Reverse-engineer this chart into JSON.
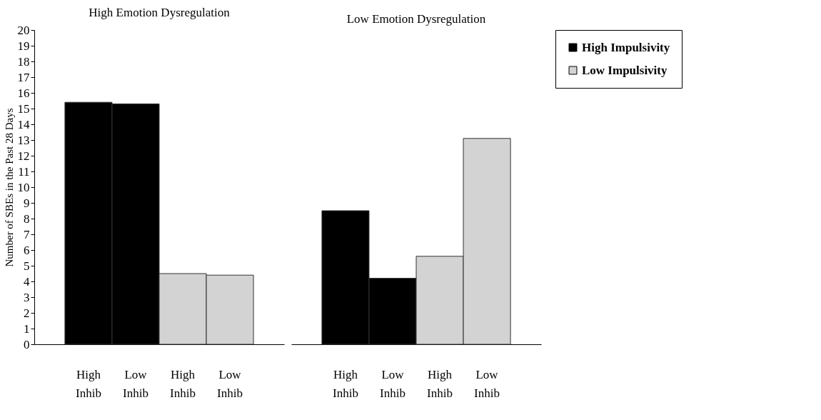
{
  "chart_data": [
    {
      "type": "bar",
      "title": "High Emotion Dysregulation",
      "ylabel": "Number of SBEs in the Past 28 Days",
      "categories": [
        "High Inhib",
        "Low Inhib",
        "High Inhib",
        "Low Inhib"
      ],
      "ylim": [
        0,
        20
      ],
      "yticks": [
        0,
        1,
        2,
        3,
        4,
        5,
        6,
        7,
        8,
        9,
        10,
        11,
        12,
        13,
        14,
        15,
        16,
        17,
        18,
        19,
        20
      ],
      "grid": false,
      "legend": false,
      "series": [
        {
          "color": "#000000",
          "values": [
            15.4,
            15.3,
            null,
            null
          ]
        },
        {
          "color": "#d3d3d3",
          "values": [
            null,
            null,
            4.5,
            4.4
          ]
        }
      ]
    },
    {
      "type": "bar",
      "title": "Low Emotion Dysregulation",
      "categories": [
        "High Inhib",
        "Low Inhib",
        "High Inhib",
        "Low Inhib"
      ],
      "ylim": [
        0,
        20
      ],
      "yticks": [
        0,
        1,
        2,
        3,
        4,
        5,
        6,
        7,
        8,
        9,
        10,
        11,
        12,
        13,
        14,
        15,
        16,
        17,
        18,
        19,
        20
      ],
      "grid": false,
      "legend": "right",
      "tick_labels": "x",
      "series": [
        {
          "name": "High Impulsivity",
          "color": "#000000",
          "values": [
            8.5,
            4.2,
            null,
            null
          ]
        },
        {
          "name": "Low Impulsivity",
          "color": "#d3d3d3",
          "values": [
            null,
            null,
            5.6,
            13.1
          ]
        }
      ]
    }
  ]
}
